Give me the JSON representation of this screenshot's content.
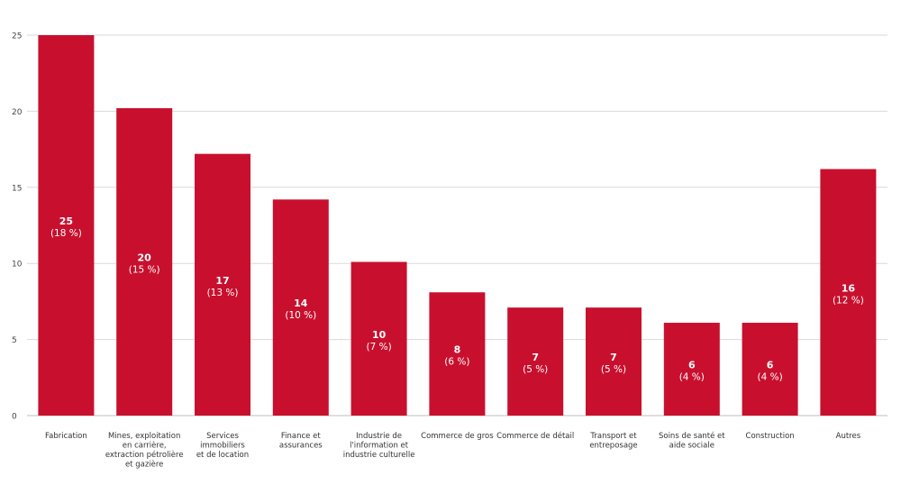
{
  "chart_data": {
    "type": "bar",
    "categories": [
      [
        "Fabrication"
      ],
      [
        "Mines, exploitation",
        "en carrière,",
        "extraction pétrolière",
        "et gazière"
      ],
      [
        "Services",
        "immobiliers",
        "et de location"
      ],
      [
        "Finance et",
        "assurances"
      ],
      [
        "Industrie de",
        "l'information et",
        "industrie culturelle"
      ],
      [
        "Commerce de gros"
      ],
      [
        "Commerce de détail"
      ],
      [
        "Transport et",
        "entreposage"
      ],
      [
        "Soins de santé et",
        "aide sociale"
      ],
      [
        "Construction"
      ],
      [
        "Autres"
      ]
    ],
    "values": [
      25,
      20,
      17,
      14,
      10,
      8,
      7,
      7,
      6,
      6,
      16
    ],
    "plot_values": [
      25,
      20.2,
      17.2,
      14.2,
      10.1,
      8.1,
      7.1,
      7.1,
      6.1,
      6.1,
      16.2
    ],
    "percent_labels": [
      "(18 %)",
      "(15 %)",
      "(13 %)",
      "(10 %)",
      "(7 %)",
      "(6 %)",
      "(5 %)",
      "(5 %)",
      "(4 %)",
      "(4 %)",
      "(12 %)"
    ],
    "yticks": [
      0,
      5,
      10,
      15,
      20,
      25
    ],
    "ylim": [
      0,
      25
    ],
    "grid": true,
    "bar_color": "#c8102e",
    "grid_color": "#d9d9d9",
    "title": "",
    "xlabel": "",
    "ylabel": ""
  }
}
